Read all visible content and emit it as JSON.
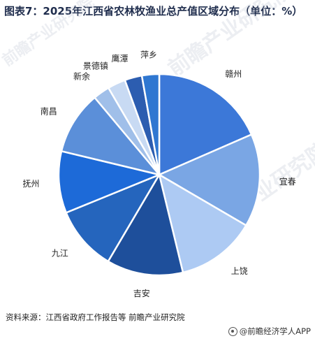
{
  "title": "图表7：2025年江西省农林牧渔业总产值区域分布（单位：%）",
  "source": "资料来源：江西省政府工作报告等 前瞻产业研究院",
  "brand": "@前瞻经济学人APP",
  "watermarks": [
    "前瞻产业研究院",
    "前瞻产业研究院",
    "前瞻产业研究院"
  ],
  "chart_data": {
    "type": "pie",
    "title": "图表7：2025年江西省农林牧渔业总产值区域分布（单位：%）",
    "unit": "%",
    "slices": [
      {
        "label": "赣州",
        "value": 17.3,
        "color": "#3c78d8"
      },
      {
        "label": "宜春",
        "value": 14.0,
        "color": "#7aa6e4"
      },
      {
        "label": "上饶",
        "value": 12.0,
        "color": "#adcaf3"
      },
      {
        "label": "吉安",
        "value": 11.5,
        "color": "#1e4f9b"
      },
      {
        "label": "九江",
        "value": 9.7,
        "color": "#2565bd"
      },
      {
        "label": "抚州",
        "value": 9.3,
        "color": "#1d6ad8"
      },
      {
        "label": "南昌",
        "value": 9.5,
        "color": "#5b8fd9"
      },
      {
        "label": "新余",
        "value": 2.5,
        "color": "#a0bfe9"
      },
      {
        "label": "景德镇",
        "value": 2.7,
        "color": "#c8daf3"
      },
      {
        "label": "鹰潭",
        "value": 2.6,
        "color": "#2c5db0"
      },
      {
        "label": "萍乡",
        "value": 2.6,
        "color": "#2f77d1"
      }
    ]
  }
}
